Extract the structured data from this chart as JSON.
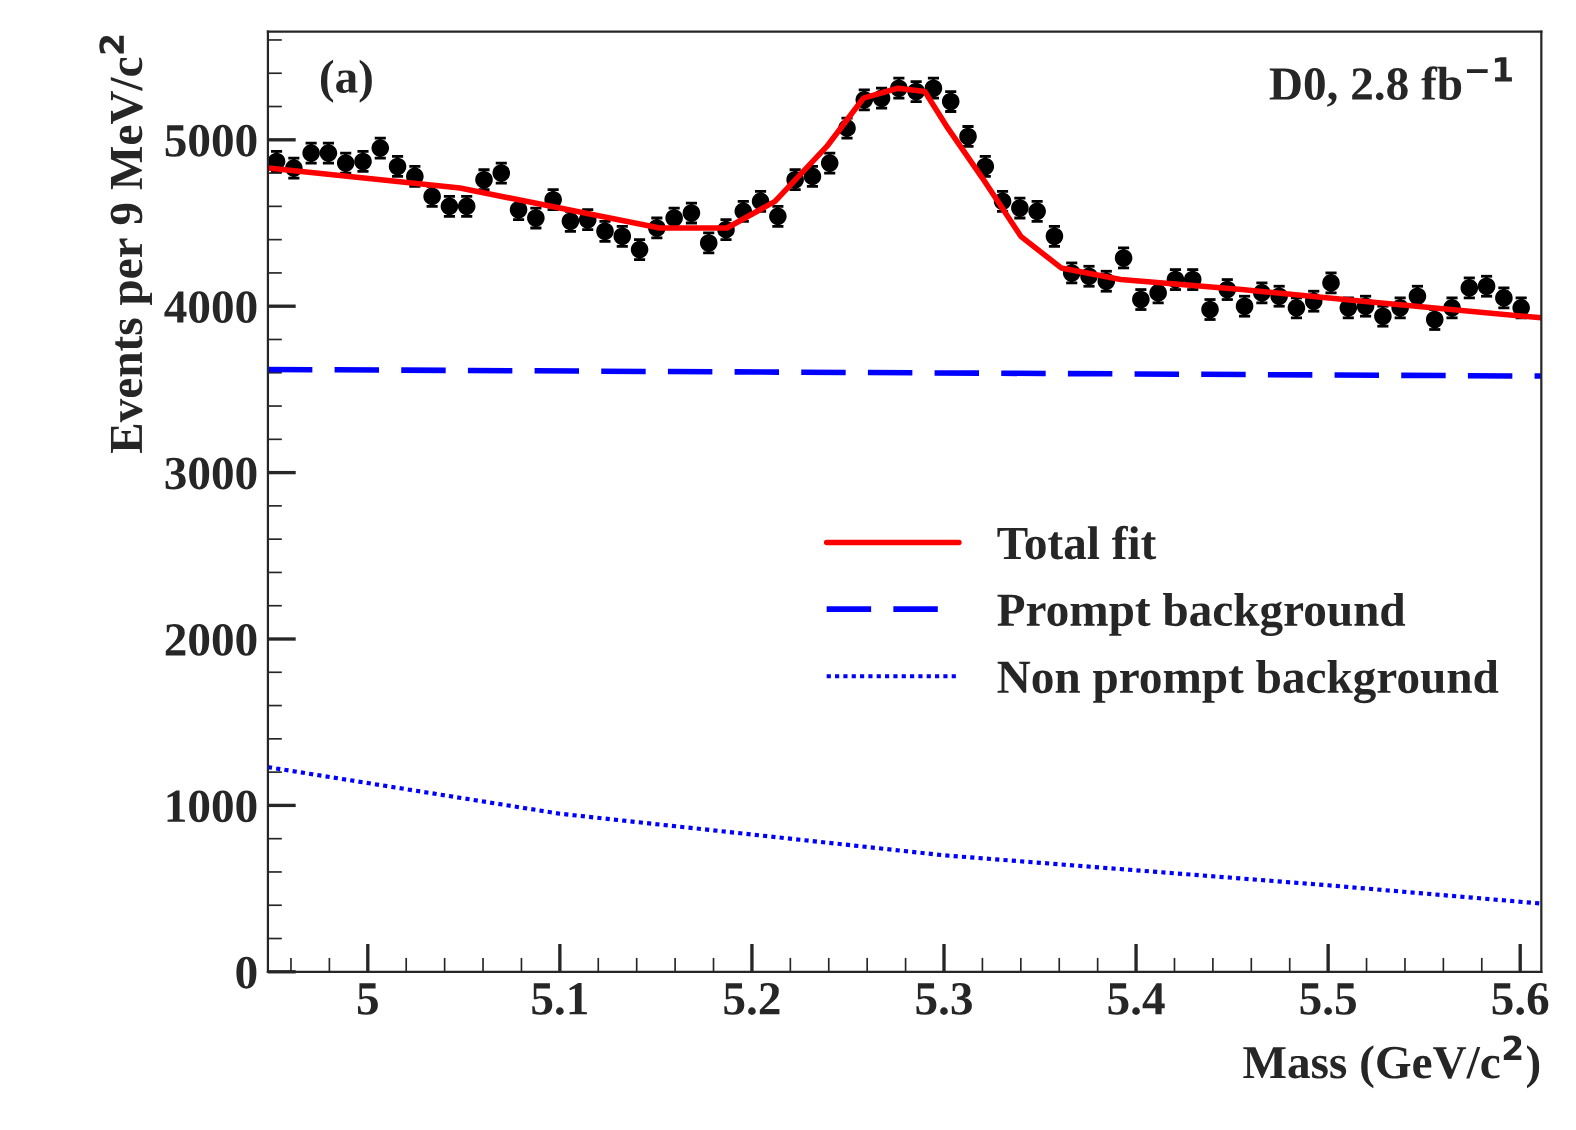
{
  "chart_data": {
    "type": "scatter",
    "xlabel": "Mass (GeV/c$^{2}$)",
    "ylabel": "Events per 9 MeV/c$^{2}$",
    "annotations": [
      "(a)",
      "D0, 2.8 fb$^{−1}$"
    ],
    "xlim": [
      4.948,
      5.611
    ],
    "ylim": [
      0,
      5650
    ],
    "xticks": [
      5,
      5.1,
      5.2,
      5.3,
      5.4,
      5.5,
      5.6
    ],
    "yticks": [
      0,
      1000,
      2000,
      3000,
      4000,
      5000
    ],
    "grid": false,
    "legend": "right",
    "marker": "circle",
    "series": [
      {
        "color": "#000000",
        "x": [
          4.9525,
          4.9615,
          4.9705,
          4.9795,
          4.9885,
          4.9975,
          5.0065,
          5.0155,
          5.0245,
          5.0335,
          5.0425,
          5.0515,
          5.0605,
          5.0695,
          5.0785,
          5.0875,
          5.0965,
          5.1055,
          5.1145,
          5.1235,
          5.1325,
          5.1415,
          5.1505,
          5.1595,
          5.1685,
          5.1775,
          5.1865,
          5.1955,
          5.2045,
          5.2135,
          5.2225,
          5.2315,
          5.2405,
          5.2495,
          5.2585,
          5.2675,
          5.2765,
          5.2855,
          5.2945,
          5.3035,
          5.3125,
          5.3215,
          5.3305,
          5.3395,
          5.3485,
          5.3575,
          5.3665,
          5.3755,
          5.3845,
          5.3935,
          5.4025,
          5.4115,
          5.4205,
          5.4295,
          5.4385,
          5.4475,
          5.4565,
          5.4655,
          5.4745,
          5.4835,
          5.4925,
          5.5015,
          5.5105,
          5.5195,
          5.5285,
          5.5375,
          5.5465,
          5.5555,
          5.5645,
          5.5735,
          5.5825,
          5.5915,
          5.6005
        ],
        "values": [
          4870,
          4830,
          4920,
          4920,
          4860,
          4870,
          4950,
          4840,
          4780,
          4660,
          4600,
          4600,
          4760,
          4800,
          4580,
          4530,
          4640,
          4510,
          4520,
          4450,
          4420,
          4340,
          4470,
          4530,
          4560,
          4380,
          4460,
          4570,
          4630,
          4540,
          4760,
          4780,
          4860,
          5070,
          5240,
          5250,
          5310,
          5290,
          5310,
          5230,
          5020,
          4840,
          4630,
          4590,
          4570,
          4420,
          4200,
          4180,
          4150,
          4290,
          4040,
          4080,
          4160,
          4160,
          3980,
          4100,
          4000,
          4080,
          4060,
          3990,
          4030,
          4140,
          3990,
          4000,
          3940,
          3990,
          4060,
          3920,
          3990,
          4110,
          4120,
          4050,
          3990
        ],
        "errors": [
          60,
          60,
          60,
          60,
          60,
          60,
          60,
          60,
          60,
          60,
          60,
          60,
          60,
          60,
          60,
          60,
          60,
          60,
          60,
          60,
          60,
          60,
          60,
          60,
          60,
          60,
          60,
          60,
          60,
          60,
          60,
          60,
          60,
          60,
          60,
          60,
          60,
          60,
          60,
          60,
          60,
          60,
          60,
          60,
          60,
          60,
          60,
          60,
          60,
          60,
          60,
          60,
          60,
          60,
          60,
          60,
          60,
          60,
          60,
          60,
          60,
          60,
          60,
          60,
          60,
          60,
          60,
          60,
          60,
          60,
          60,
          60,
          60
        ]
      },
      {
        "type": "line",
        "name": "Total fit",
        "color": "#ff0000",
        "line_style": "solid",
        "marker": "none",
        "x": [
          4.948,
          5.048,
          5.152,
          5.187,
          5.212,
          5.239,
          5.258,
          5.276,
          5.29,
          5.302,
          5.32,
          5.34,
          5.361,
          5.392,
          5.455,
          5.518,
          5.611
        ],
        "values": [
          4830,
          4710,
          4470,
          4470,
          4630,
          4960,
          5250,
          5310,
          5290,
          5070,
          4770,
          4420,
          4230,
          4160,
          4100,
          4030,
          3930
        ]
      },
      {
        "type": "line",
        "name": "Prompt background",
        "color": "#0000ff",
        "line_style": "dashed",
        "marker": "none",
        "x": [
          4.948,
          5.611
        ],
        "values": [
          3620,
          3580
        ]
      },
      {
        "type": "line",
        "name": "Non prompt background",
        "color": "#0000ff",
        "line_style": "dotted",
        "marker": "none",
        "x": [
          4.948,
          5.1,
          5.3,
          5.5,
          5.611
        ],
        "values": [
          1230,
          950,
          700,
          520,
          410
        ]
      }
    ]
  }
}
